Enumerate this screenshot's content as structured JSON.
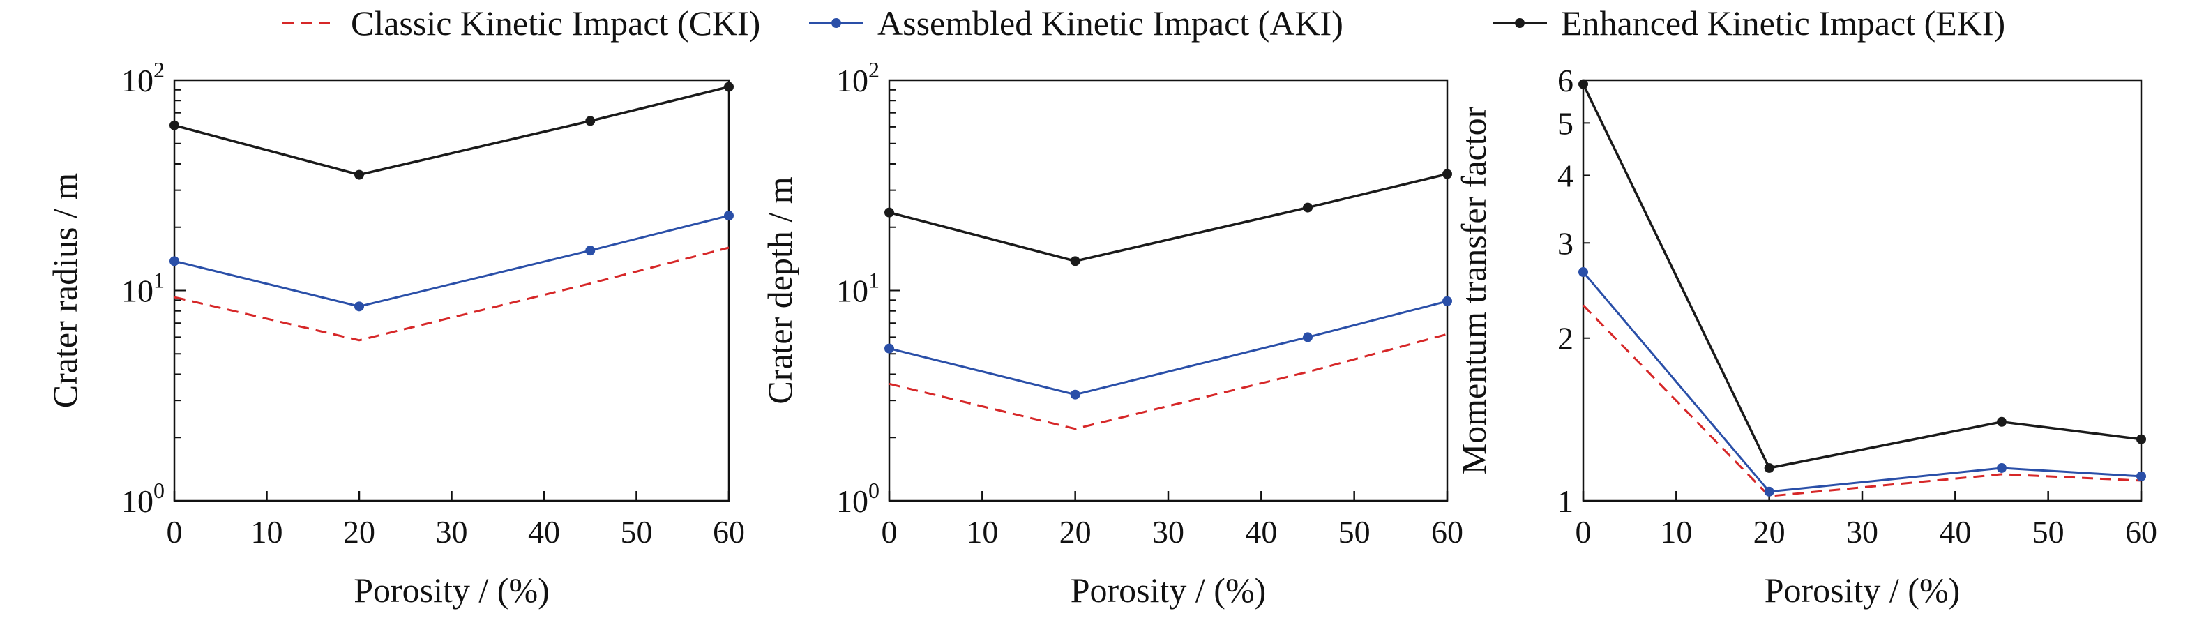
{
  "legend": [
    {
      "label": "Classic Kinetic Impact (CKI)",
      "color": "#d62728",
      "dash": true,
      "marker": false
    },
    {
      "label": "Assembled Kinetic Impact (AKI)",
      "color": "#2a4fa8",
      "dash": false,
      "marker": true
    },
    {
      "label": "Enhanced Kinetic Impact (EKI)",
      "color": "#1a1a1a",
      "dash": false,
      "marker": true
    }
  ],
  "chart_data": [
    {
      "type": "line",
      "xlabel": "Porosity / (%)",
      "ylabel": "Crater radius / m",
      "xlim": [
        0,
        60
      ],
      "xticks": [
        0,
        10,
        20,
        30,
        40,
        50,
        60
      ],
      "yscale": "log",
      "ylim": [
        1,
        100
      ],
      "yticks": [
        {
          "base": "10",
          "exp": "0",
          "value": 1
        },
        {
          "base": "10",
          "exp": "1",
          "value": 10
        },
        {
          "base": "10",
          "exp": "2",
          "value": 100
        }
      ],
      "x": [
        0,
        20,
        45,
        60
      ],
      "series": [
        {
          "name": "Classic Kinetic Impact (CKI)",
          "values": [
            9.3,
            5.8,
            10.8,
            16.0
          ]
        },
        {
          "name": "Assembled Kinetic Impact (AKI)",
          "values": [
            13.8,
            8.4,
            15.5,
            22.7
          ]
        },
        {
          "name": "Enhanced Kinetic Impact (EKI)",
          "values": [
            61,
            35.5,
            64,
            93
          ]
        }
      ]
    },
    {
      "type": "line",
      "xlabel": "Porosity / (%)",
      "ylabel": "Crater depth / m",
      "xlim": [
        0,
        60
      ],
      "xticks": [
        0,
        10,
        20,
        30,
        40,
        50,
        60
      ],
      "yscale": "log",
      "ylim": [
        1,
        100
      ],
      "yticks": [
        {
          "base": "10",
          "exp": "0",
          "value": 1
        },
        {
          "base": "10",
          "exp": "1",
          "value": 10
        },
        {
          "base": "10",
          "exp": "2",
          "value": 100
        }
      ],
      "x": [
        0,
        20,
        45,
        60
      ],
      "series": [
        {
          "name": "Classic Kinetic Impact (CKI)",
          "values": [
            3.6,
            2.2,
            4.1,
            6.2
          ]
        },
        {
          "name": "Assembled Kinetic Impact (AKI)",
          "values": [
            5.3,
            3.2,
            6.0,
            8.9
          ]
        },
        {
          "name": "Enhanced Kinetic Impact (EKI)",
          "values": [
            23.5,
            13.8,
            24.8,
            35.8
          ]
        }
      ]
    },
    {
      "type": "line",
      "xlabel": "Porosity / (%)",
      "ylabel": "Momentum transfer factor",
      "xlim": [
        0,
        60
      ],
      "xticks": [
        0,
        10,
        20,
        30,
        40,
        50,
        60
      ],
      "yscale": "log",
      "ylim": [
        1,
        6
      ],
      "yticks": [
        {
          "base": "1",
          "exp": "",
          "value": 1
        },
        {
          "base": "2",
          "exp": "",
          "value": 2
        },
        {
          "base": "3",
          "exp": "",
          "value": 3
        },
        {
          "base": "4",
          "exp": "",
          "value": 4
        },
        {
          "base": "5",
          "exp": "",
          "value": 5
        },
        {
          "base": "6",
          "exp": "",
          "value": 6
        }
      ],
      "x": [
        0,
        20,
        45,
        60
      ],
      "series": [
        {
          "name": "Classic Kinetic Impact (CKI)",
          "values": [
            2.3,
            1.02,
            1.12,
            1.09
          ]
        },
        {
          "name": "Assembled Kinetic Impact (AKI)",
          "values": [
            2.65,
            1.04,
            1.15,
            1.11
          ]
        },
        {
          "name": "Enhanced Kinetic Impact (EKI)",
          "values": [
            5.9,
            1.15,
            1.4,
            1.3
          ]
        }
      ]
    }
  ]
}
